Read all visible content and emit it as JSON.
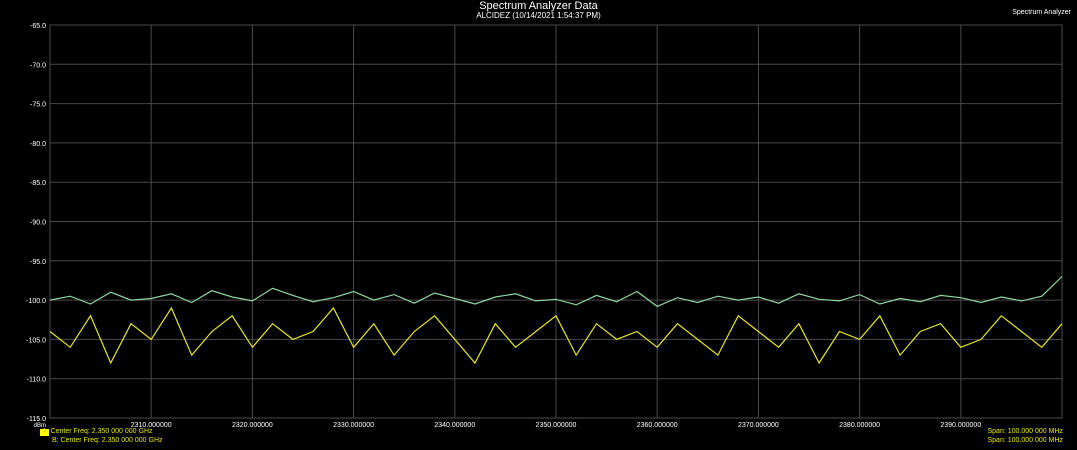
{
  "header": {
    "title": "Spectrum Analyzer Data",
    "subtitle": "ALCIDEZ (10/14/2021 1:54:37 PM)",
    "corner_label": "Spectrum Analyzer"
  },
  "legend": {
    "trace_a": "A: Center Freq: 2.350 000 000 GHz",
    "trace_b": "B: Center Freq: 2.350 000 000 GHz",
    "span_a": "Span: 100.000 000 MHz",
    "span_b": "Span: 100.000 000 MHz"
  },
  "colors": {
    "background": "#000000",
    "grid": "#4a4a4a",
    "trace_a": "#e6e61e",
    "trace_b": "#8fd6a0",
    "text": "#ffffff"
  },
  "chart_data": {
    "type": "line",
    "title": "Spectrum Analyzer Data",
    "subtitle": "ALCIDEZ (10/14/2021 1:54:37 PM)",
    "ylabel": "dBm",
    "xlim": [
      2300,
      2400
    ],
    "ylim": [
      -115,
      -65
    ],
    "grid": true,
    "legend_placement": "bottom",
    "y_ticks": [
      "-65.0",
      "-70.0",
      "-75.0",
      "-80.0",
      "-85.0",
      "-90.0",
      "-95.0",
      "-100.0",
      "-105.0",
      "-110.0",
      "-115.0"
    ],
    "y_tick_values": [
      -65,
      -70,
      -75,
      -80,
      -85,
      -90,
      -95,
      -100,
      -105,
      -110,
      -115
    ],
    "x_ticks": [
      "2310.000000",
      "2320.000000",
      "2330.000000",
      "2340.000000",
      "2350.000000",
      "2360.000000",
      "2370.000000",
      "2380.000000",
      "2390.000000"
    ],
    "x_tick_values": [
      2310,
      2320,
      2330,
      2340,
      2350,
      2360,
      2370,
      2380,
      2390
    ],
    "series": [
      {
        "key": "A",
        "color": "#e6e61e",
        "x": [
          2300,
          2302,
          2304,
          2306,
          2308,
          2310,
          2312,
          2314,
          2316,
          2318,
          2320,
          2322,
          2324,
          2326,
          2328,
          2330,
          2332,
          2334,
          2336,
          2338,
          2340,
          2342,
          2344,
          2346,
          2348,
          2350,
          2352,
          2354,
          2356,
          2358,
          2360,
          2362,
          2364,
          2366,
          2368,
          2370,
          2372,
          2374,
          2376,
          2378,
          2380,
          2382,
          2384,
          2386,
          2388,
          2390,
          2392,
          2394,
          2396,
          2398,
          2400
        ],
        "y": [
          -104,
          -106,
          -102,
          -108,
          -103,
          -105,
          -101,
          -107,
          -104,
          -102,
          -106,
          -103,
          -105,
          -104,
          -101,
          -106,
          -103,
          -107,
          -104,
          -102,
          -105,
          -108,
          -103,
          -106,
          -104,
          -102,
          -107,
          -103,
          -105,
          -104,
          -106,
          -103,
          -105,
          -107,
          -102,
          -104,
          -106,
          -103,
          -108,
          -104,
          -105,
          -102,
          -107,
          -104,
          -103,
          -106,
          -105,
          -102,
          -104,
          -106,
          -103
        ]
      },
      {
        "key": "B",
        "color": "#8fd6a0",
        "x": [
          2300,
          2302,
          2304,
          2306,
          2308,
          2310,
          2312,
          2314,
          2316,
          2318,
          2320,
          2322,
          2324,
          2326,
          2328,
          2330,
          2332,
          2334,
          2336,
          2338,
          2340,
          2342,
          2344,
          2346,
          2348,
          2350,
          2352,
          2354,
          2356,
          2358,
          2360,
          2362,
          2364,
          2366,
          2368,
          2370,
          2372,
          2374,
          2376,
          2378,
          2380,
          2382,
          2384,
          2386,
          2388,
          2390,
          2392,
          2394,
          2396,
          2398,
          2400
        ],
        "y": [
          -100,
          -99.5,
          -100.5,
          -99,
          -100,
          -99.8,
          -99.2,
          -100.3,
          -98.8,
          -99.6,
          -100.1,
          -98.5,
          -99.4,
          -100.2,
          -99.7,
          -98.9,
          -100,
          -99.3,
          -100.4,
          -99.1,
          -99.8,
          -100.5,
          -99.6,
          -99.2,
          -100.1,
          -99.9,
          -100.6,
          -99.4,
          -100.2,
          -98.9,
          -100.8,
          -99.7,
          -100.3,
          -99.5,
          -100,
          -99.6,
          -100.4,
          -99.2,
          -99.9,
          -100.1,
          -99.3,
          -100.5,
          -99.8,
          -100.2,
          -99.4,
          -99.7,
          -100.3,
          -99.6,
          -100.1,
          -99.5,
          -97
        ]
      }
    ]
  }
}
